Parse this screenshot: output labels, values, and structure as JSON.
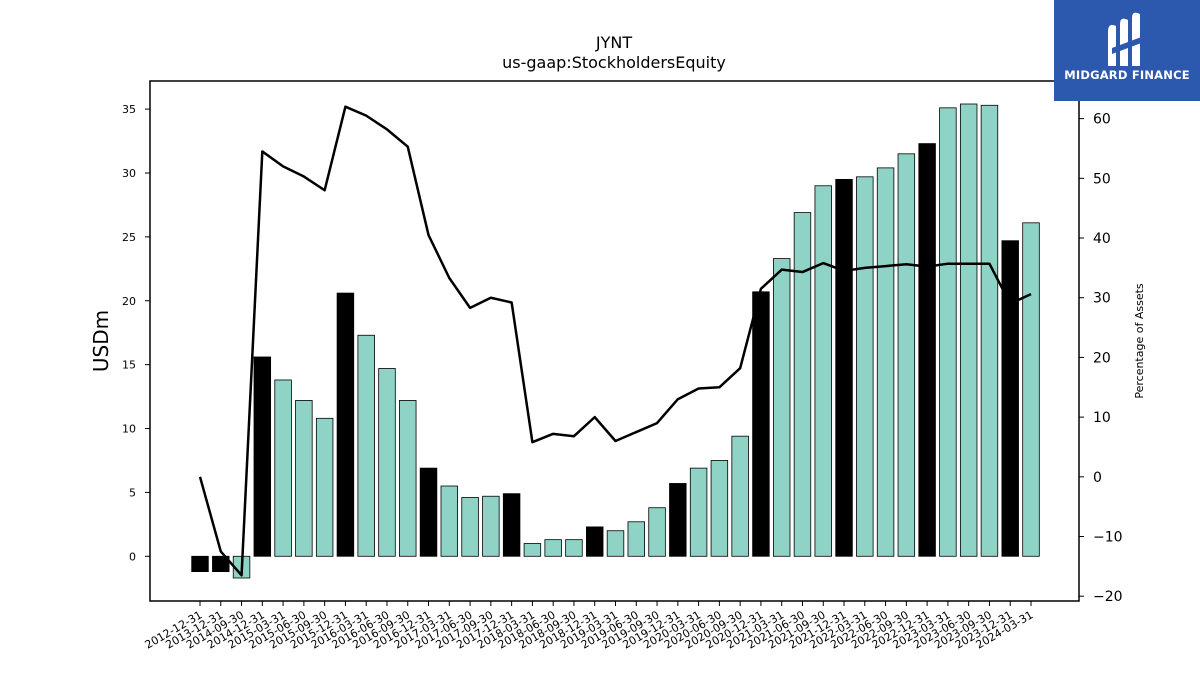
{
  "chart_data": {
    "type": "bar",
    "title": "JYNT",
    "subtitle": "us-gaap:StockholdersEquity",
    "ylabel": "USDm",
    "ylabel_right": "Percentage of Assets",
    "ylim": [
      -3.5,
      37.2
    ],
    "ylim_right": [
      -20.8,
      66.3
    ],
    "yticks": [
      0,
      5,
      10,
      15,
      20,
      25,
      30,
      35
    ],
    "yticks_right": [
      -20,
      -10,
      0,
      10,
      20,
      30,
      40,
      50,
      60
    ],
    "bar_colors": {
      "annual": "#000000",
      "quarter": "#8fd3c6"
    },
    "categories": [
      "2012-12-31",
      "2013-12-31",
      "2014-09-30",
      "2014-12-31",
      "2015-03-31",
      "2015-06-30",
      "2015-09-30",
      "2015-12-31",
      "2016-03-31",
      "2016-06-30",
      "2016-09-30",
      "2016-12-31",
      "2017-03-31",
      "2017-06-30",
      "2017-09-30",
      "2017-12-31",
      "2018-03-31",
      "2018-06-30",
      "2018-09-30",
      "2018-12-31",
      "2019-03-31",
      "2019-06-30",
      "2019-09-30",
      "2019-12-31",
      "2020-03-31",
      "2020-06-30",
      "2020-09-30",
      "2020-12-31",
      "2021-03-31",
      "2021-06-30",
      "2021-09-30",
      "2021-12-31",
      "2022-03-31",
      "2022-06-30",
      "2022-09-30",
      "2022-12-31",
      "2023-03-31",
      "2023-06-30",
      "2023-09-30",
      "2023-12-31",
      "2024-03-31"
    ],
    "series": [
      {
        "type": "bar",
        "values": [
          -1.2,
          -1.2,
          -1.7,
          15.6,
          13.8,
          12.2,
          10.8,
          20.6,
          17.3,
          14.7,
          12.2,
          6.9,
          5.5,
          4.6,
          4.7,
          4.9,
          1.0,
          1.3,
          1.3,
          2.3,
          2.0,
          2.7,
          3.8,
          5.7,
          6.9,
          7.5,
          9.4,
          20.7,
          23.3,
          26.9,
          29.0,
          29.5,
          29.7,
          30.4,
          31.5,
          32.3,
          35.1,
          35.4,
          35.3,
          24.7,
          26.1
        ],
        "annual": [
          true,
          true,
          false,
          true,
          false,
          false,
          false,
          true,
          false,
          false,
          false,
          true,
          false,
          false,
          false,
          true,
          false,
          false,
          false,
          true,
          false,
          false,
          false,
          true,
          false,
          false,
          false,
          true,
          false,
          false,
          false,
          true,
          false,
          false,
          false,
          true,
          false,
          false,
          false,
          true,
          false
        ]
      },
      {
        "type": "line",
        "axis": "right",
        "color": "#000000",
        "values": [
          0.0,
          -12.5,
          -16.5,
          54.5,
          52.0,
          50.3,
          48.0,
          62.0,
          60.5,
          58.2,
          55.3,
          40.5,
          33.3,
          28.3,
          30.0,
          29.2,
          5.8,
          7.2,
          6.8,
          10.0,
          6.0,
          7.5,
          9.0,
          13.0,
          14.8,
          15.0,
          18.2,
          31.5,
          34.7,
          34.3,
          35.8,
          34.5,
          35.0,
          35.3,
          35.6,
          35.2,
          35.7,
          35.7,
          35.7,
          29.0,
          30.6
        ]
      }
    ]
  },
  "logo": {
    "text": "MIDGARD FINANCE",
    "color": "#2c58ad"
  }
}
